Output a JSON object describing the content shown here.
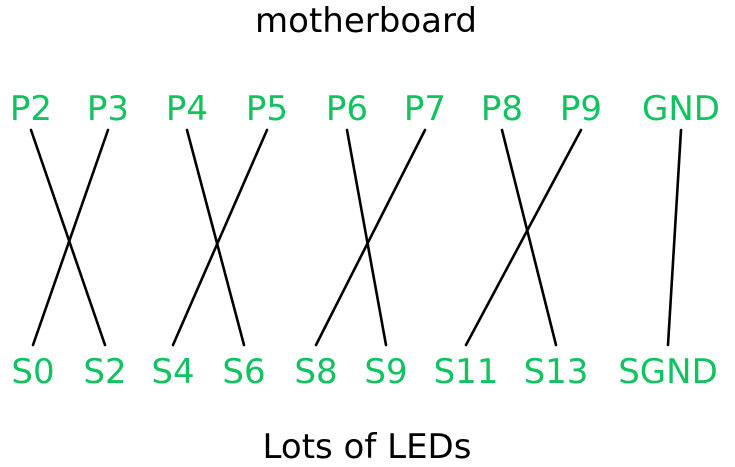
{
  "title_top": "motherboard",
  "title_bottom": "Lots of LEDs",
  "colors": {
    "label": "#10c35f",
    "wire": "#000000",
    "title": "#000000"
  },
  "top_pins": [
    "P2",
    "P3",
    "P4",
    "P5",
    "P6",
    "P7",
    "P8",
    "P9",
    "GND"
  ],
  "bottom_pins": [
    "S0",
    "S2",
    "S4",
    "S6",
    "S8",
    "S9",
    "S11",
    "S13",
    "SGND"
  ],
  "connections": [
    {
      "from": "P2",
      "to": "S2"
    },
    {
      "from": "P3",
      "to": "S0"
    },
    {
      "from": "P4",
      "to": "S6"
    },
    {
      "from": "P5",
      "to": "S4"
    },
    {
      "from": "P6",
      "to": "S9"
    },
    {
      "from": "P7",
      "to": "S8"
    },
    {
      "from": "P8",
      "to": "S13"
    },
    {
      "from": "P9",
      "to": "S11"
    },
    {
      "from": "GND",
      "to": "SGND"
    }
  ]
}
